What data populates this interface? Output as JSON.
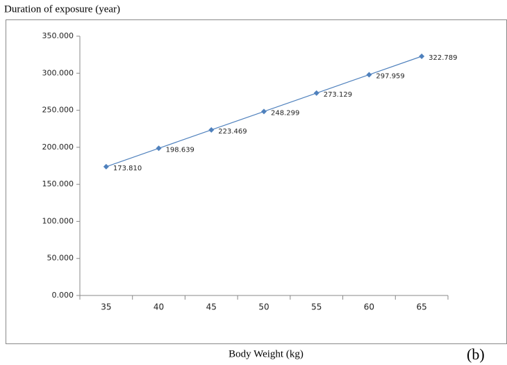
{
  "chart_data": {
    "type": "line",
    "y_axis_label": "Duration of exposure (year)",
    "x_axis_label": "Body Weight (kg)",
    "panel_label": "(b)",
    "categories": [
      "35",
      "40",
      "45",
      "50",
      "55",
      "60",
      "65"
    ],
    "values": [
      173.81,
      198.639,
      223.469,
      248.299,
      273.129,
      297.959,
      322.789
    ],
    "value_labels": [
      "173.810",
      "198.639",
      "223.469",
      "248.299",
      "273.129",
      "297.959",
      "322.789"
    ],
    "color": "#4f81bd",
    "ylim": [
      0,
      350
    ],
    "yticks": [
      {
        "value": 0,
        "label": "0.000"
      },
      {
        "value": 50,
        "label": "50.000"
      },
      {
        "value": 100,
        "label": "100.000"
      },
      {
        "value": 150,
        "label": "150.000"
      },
      {
        "value": 200,
        "label": "200.000"
      },
      {
        "value": 250,
        "label": "250.000"
      },
      {
        "value": 300,
        "label": "300.000"
      },
      {
        "value": 350,
        "label": "350.000"
      }
    ]
  }
}
